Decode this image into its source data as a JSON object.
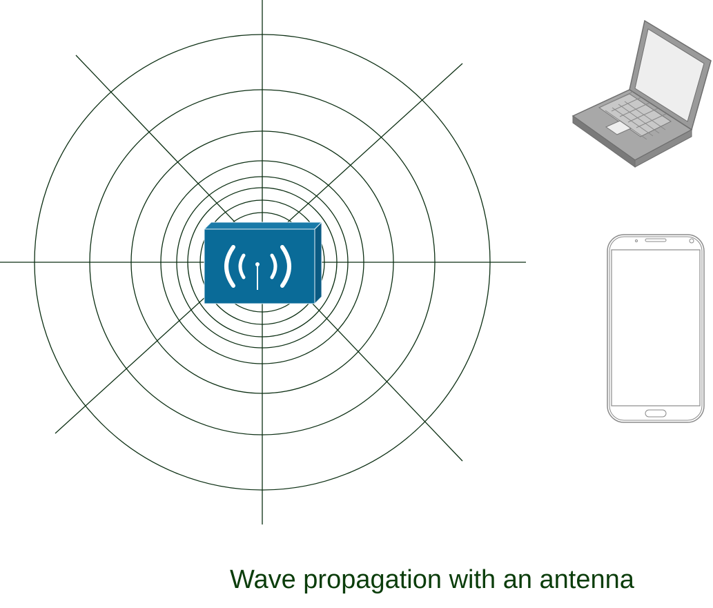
{
  "caption": "Wave propagation with an antenna",
  "colors": {
    "wave_line": "#0b2e12",
    "caption_text": "#0b3d0b",
    "antenna_front": "#0a6b98",
    "antenna_side": "#0a5a82",
    "antenna_top": "#1a7aa8",
    "antenna_symbol": "#ffffff",
    "laptop_body": "#9a9a9a",
    "laptop_dark": "#6e6e6e",
    "laptop_screen": "#eeeeee",
    "phone_outline": "#8a8a8a"
  },
  "icons": {
    "antenna": "wireless-antenna-icon",
    "laptop": "laptop-icon",
    "phone": "smartphone-icon"
  }
}
